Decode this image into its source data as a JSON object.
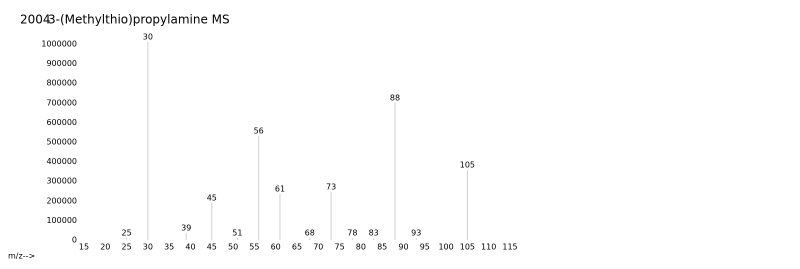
{
  "chart_data": {
    "type": "bar",
    "year": "2004",
    "title": "3-(Methylthio)propylamine MS",
    "x_label": "m/z-->",
    "x": [
      25,
      30,
      39,
      45,
      51,
      56,
      61,
      68,
      73,
      78,
      83,
      88,
      93,
      105
    ],
    "values": [
      10000,
      1010000,
      36000,
      190000,
      10000,
      530000,
      235000,
      10000,
      245000,
      10000,
      10000,
      700000,
      10000,
      357000
    ],
    "color": "#d0d0d0",
    "xlim": [
      15,
      115
    ],
    "xticks": [
      15,
      20,
      25,
      30,
      35,
      40,
      45,
      50,
      55,
      60,
      65,
      70,
      75,
      80,
      85,
      90,
      95,
      100,
      105,
      110,
      115
    ],
    "ylim": [
      0,
      1000000
    ],
    "yticks": [
      0,
      100000,
      200000,
      300000,
      400000,
      500000,
      600000,
      700000,
      800000,
      900000,
      1000000
    ]
  }
}
